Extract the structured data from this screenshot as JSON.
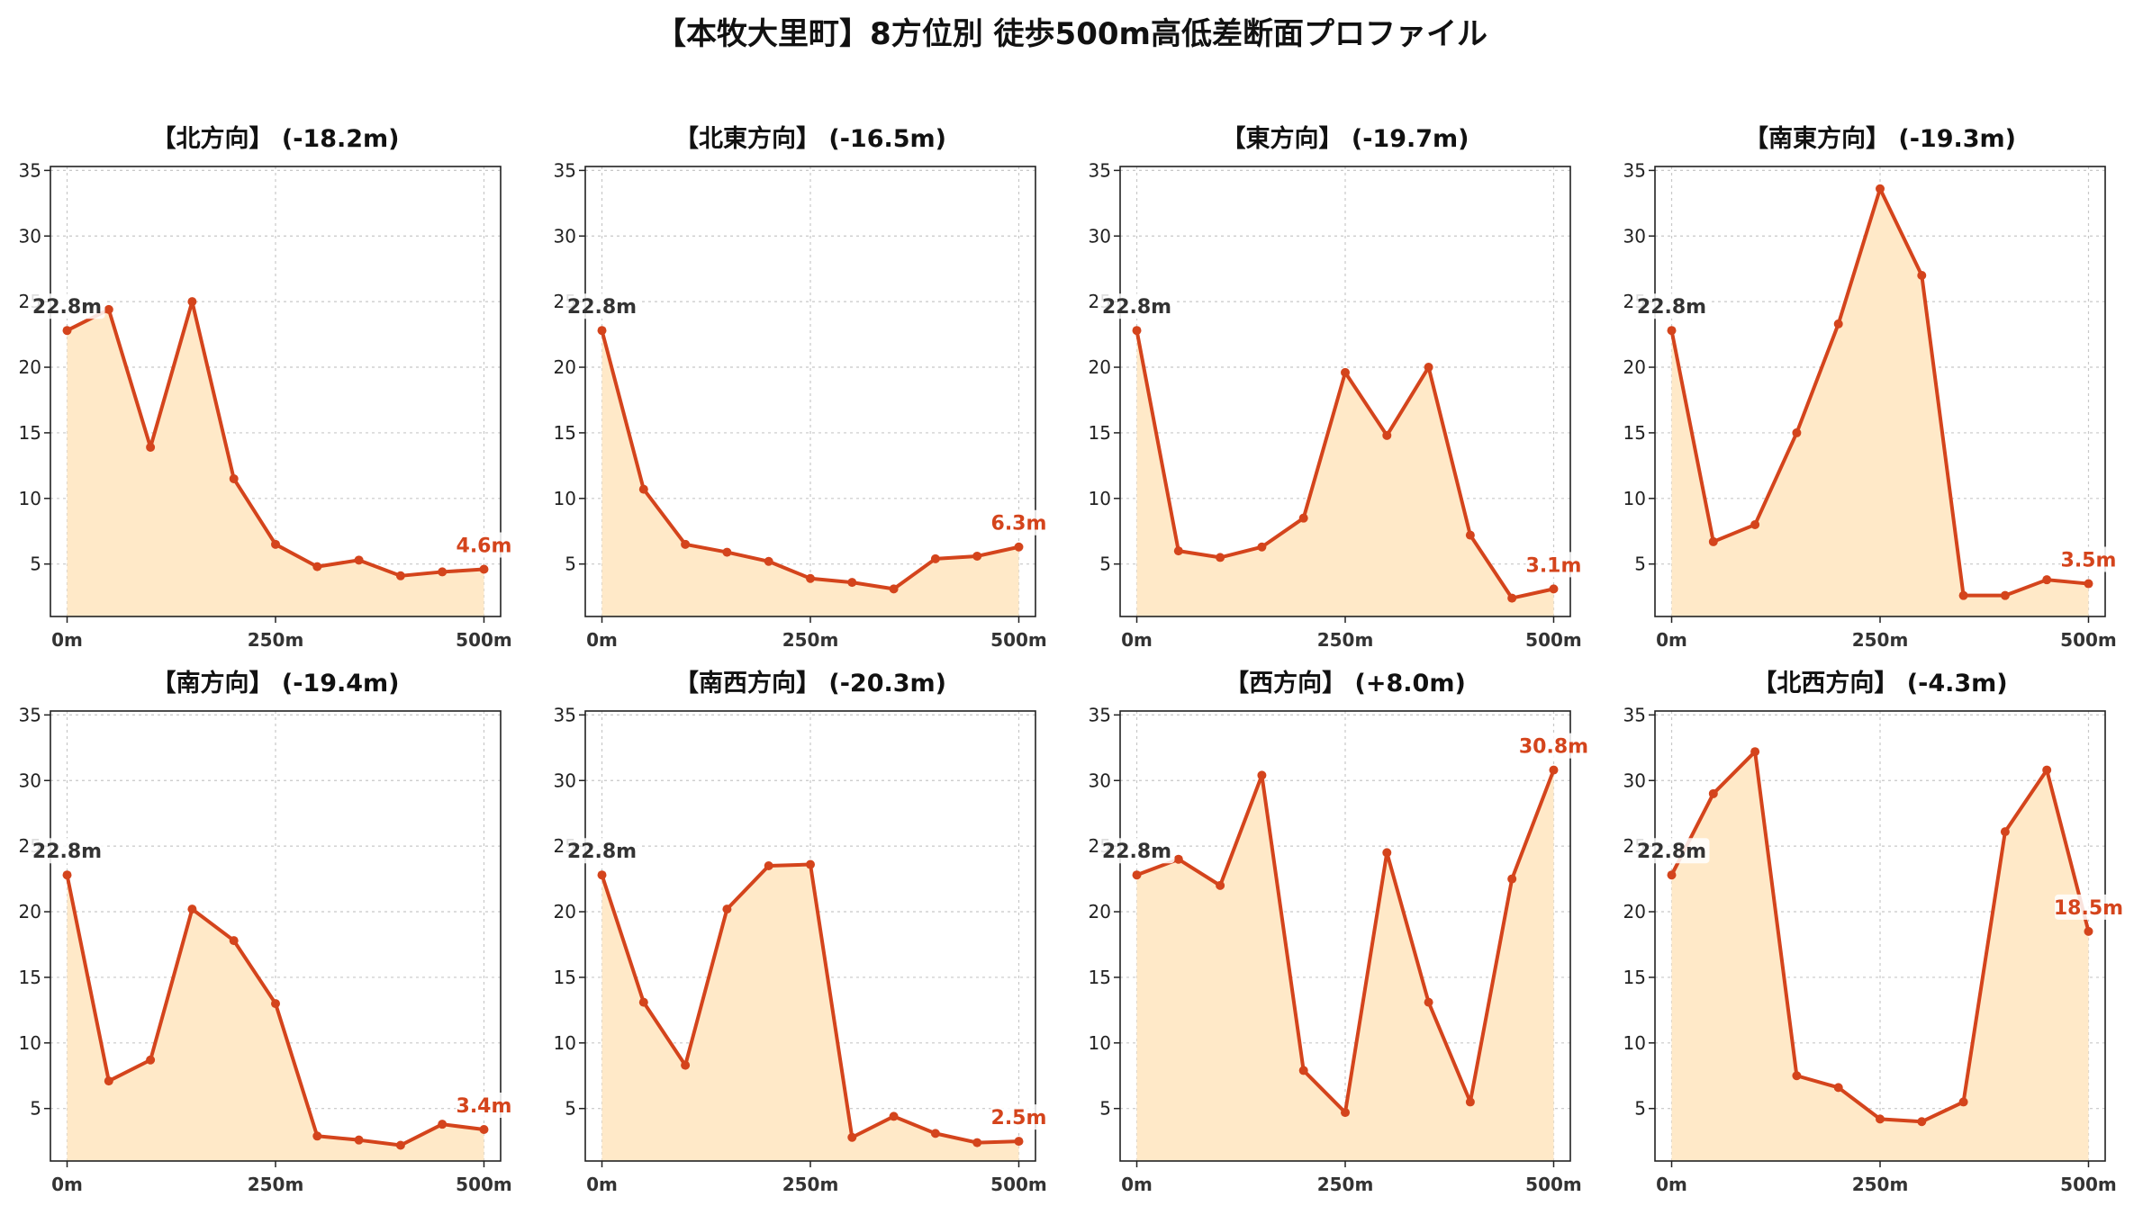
{
  "title": "【本牧大里町】8方位別 徒歩500m高低差断面プロファイル",
  "chart_data": [
    {
      "type": "line",
      "title": "【北方向】 (-18.2m)",
      "x": [
        0,
        50,
        100,
        150,
        200,
        250,
        300,
        350,
        400,
        450,
        500
      ],
      "values": [
        22.8,
        24.4,
        13.9,
        25.0,
        11.5,
        6.5,
        4.8,
        5.3,
        4.1,
        4.4,
        4.6
      ],
      "start_label": "22.8m",
      "end_label": "4.6m",
      "ylim": [
        1,
        35.3
      ],
      "yticks": [
        "5",
        "10",
        "15",
        "20",
        "25",
        "30",
        "35"
      ],
      "xticks": [
        "0m",
        "250m",
        "500m"
      ]
    },
    {
      "type": "line",
      "title": "【北東方向】 (-16.5m)",
      "x": [
        0,
        50,
        100,
        150,
        200,
        250,
        300,
        350,
        400,
        450,
        500
      ],
      "values": [
        22.8,
        10.7,
        6.5,
        5.9,
        5.2,
        3.9,
        3.6,
        3.1,
        5.4,
        5.6,
        6.3
      ],
      "start_label": "22.8m",
      "end_label": "6.3m",
      "ylim": [
        1,
        35.3
      ],
      "yticks": [
        "5",
        "10",
        "15",
        "20",
        "25",
        "30",
        "35"
      ],
      "xticks": [
        "0m",
        "250m",
        "500m"
      ]
    },
    {
      "type": "line",
      "title": "【東方向】 (-19.7m)",
      "x": [
        0,
        50,
        100,
        150,
        200,
        250,
        300,
        350,
        400,
        450,
        500
      ],
      "values": [
        22.8,
        6.0,
        5.5,
        6.3,
        8.5,
        19.6,
        14.8,
        20.0,
        7.2,
        2.4,
        3.1
      ],
      "start_label": "22.8m",
      "end_label": "3.1m",
      "ylim": [
        1,
        35.3
      ],
      "yticks": [
        "5",
        "10",
        "15",
        "20",
        "25",
        "30",
        "35"
      ],
      "xticks": [
        "0m",
        "250m",
        "500m"
      ]
    },
    {
      "type": "line",
      "title": "【南東方向】 (-19.3m)",
      "x": [
        0,
        50,
        100,
        150,
        200,
        250,
        300,
        350,
        400,
        450,
        500
      ],
      "values": [
        22.8,
        6.7,
        8.0,
        15.0,
        23.3,
        33.6,
        27.0,
        2.6,
        2.6,
        3.8,
        3.5
      ],
      "start_label": "22.8m",
      "end_label": "3.5m",
      "ylim": [
        1,
        35.3
      ],
      "yticks": [
        "5",
        "10",
        "15",
        "20",
        "25",
        "30",
        "35"
      ],
      "xticks": [
        "0m",
        "250m",
        "500m"
      ]
    },
    {
      "type": "line",
      "title": "【南方向】 (-19.4m)",
      "x": [
        0,
        50,
        100,
        150,
        200,
        250,
        300,
        350,
        400,
        450,
        500
      ],
      "values": [
        22.8,
        7.1,
        8.7,
        20.2,
        17.8,
        13.0,
        2.9,
        2.6,
        2.2,
        3.8,
        3.4
      ],
      "start_label": "22.8m",
      "end_label": "3.4m",
      "ylim": [
        1,
        35.3
      ],
      "yticks": [
        "5",
        "10",
        "15",
        "20",
        "25",
        "30",
        "35"
      ],
      "xticks": [
        "0m",
        "250m",
        "500m"
      ]
    },
    {
      "type": "line",
      "title": "【南西方向】 (-20.3m)",
      "x": [
        0,
        50,
        100,
        150,
        200,
        250,
        300,
        350,
        400,
        450,
        500
      ],
      "values": [
        22.8,
        13.1,
        8.3,
        20.2,
        23.5,
        23.6,
        2.8,
        4.4,
        3.1,
        2.4,
        2.5
      ],
      "start_label": "22.8m",
      "end_label": "2.5m",
      "ylim": [
        1,
        35.3
      ],
      "yticks": [
        "5",
        "10",
        "15",
        "20",
        "25",
        "30",
        "35"
      ],
      "xticks": [
        "0m",
        "250m",
        "500m"
      ]
    },
    {
      "type": "line",
      "title": "【西方向】 (+8.0m)",
      "x": [
        0,
        50,
        100,
        150,
        200,
        250,
        300,
        350,
        400,
        450,
        500
      ],
      "values": [
        22.8,
        24.0,
        22.0,
        30.4,
        7.9,
        4.7,
        24.5,
        13.1,
        5.5,
        22.5,
        30.8
      ],
      "start_label": "22.8m",
      "end_label": "30.8m",
      "ylim": [
        1,
        35.3
      ],
      "yticks": [
        "5",
        "10",
        "15",
        "20",
        "25",
        "30",
        "35"
      ],
      "xticks": [
        "0m",
        "250m",
        "500m"
      ]
    },
    {
      "type": "line",
      "title": "【北西方向】 (-4.3m)",
      "x": [
        0,
        50,
        100,
        150,
        200,
        250,
        300,
        350,
        400,
        450,
        500
      ],
      "values": [
        22.8,
        29.0,
        32.2,
        7.5,
        6.6,
        4.2,
        4.0,
        5.5,
        26.1,
        30.8,
        18.5
      ],
      "start_label": "22.8m",
      "end_label": "18.5m",
      "ylim": [
        1,
        35.3
      ],
      "yticks": [
        "5",
        "10",
        "15",
        "20",
        "25",
        "30",
        "35"
      ],
      "xticks": [
        "0m",
        "250m",
        "500m"
      ]
    }
  ]
}
